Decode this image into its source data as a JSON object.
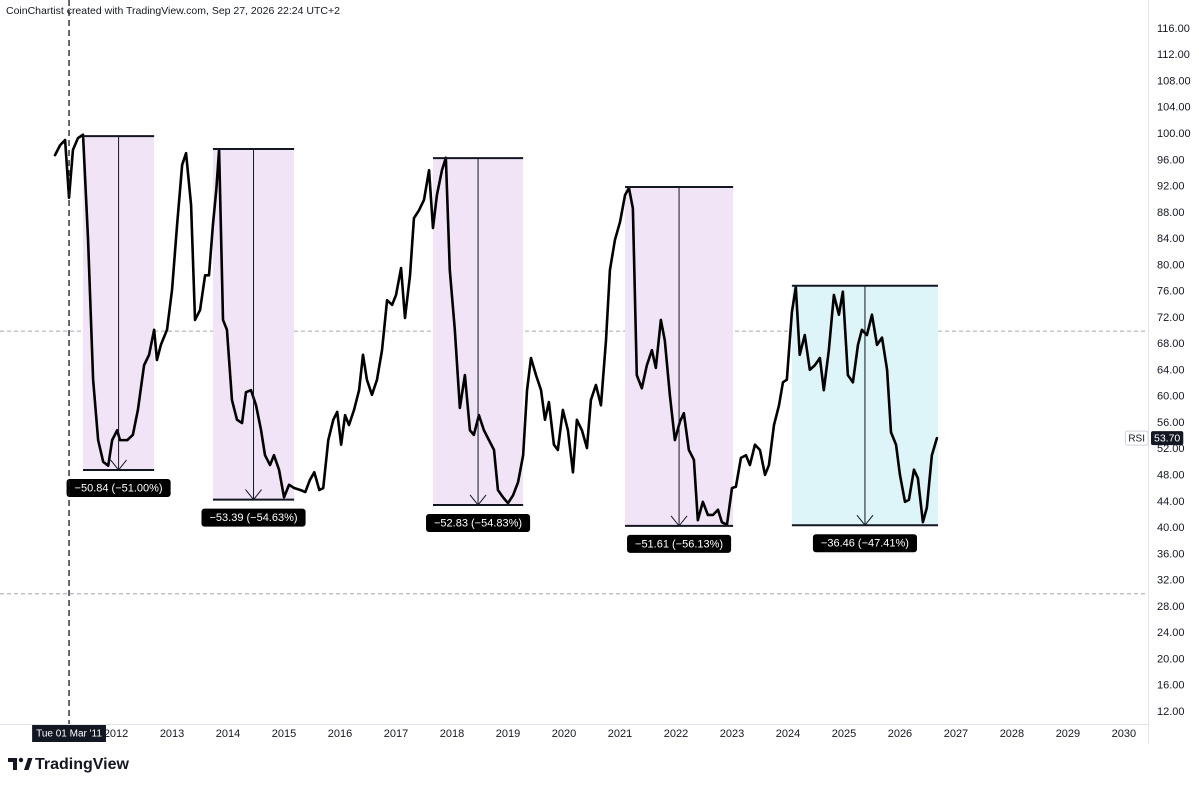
{
  "chart_data": {
    "type": "line",
    "title": "CoinChartist created with TradingView.com, Sep 27, 2026 22:24 UTC+2",
    "watermark": "TradingView",
    "xlim": [
      2010.07,
      2030.43
    ],
    "xticks": [
      2012,
      2013,
      2014,
      2015,
      2016,
      2017,
      2018,
      2019,
      2020,
      2021,
      2022,
      2023,
      2024,
      2025,
      2026,
      2027,
      2028,
      2029,
      2030
    ],
    "ylim": [
      10.17,
      117.68
    ],
    "yticks": [
      {
        "value": 12,
        "label": "12.00"
      },
      {
        "value": 16,
        "label": "16.00"
      },
      {
        "value": 20,
        "label": "20.00"
      },
      {
        "value": 24,
        "label": "24.00"
      },
      {
        "value": 28,
        "label": "28.00"
      },
      {
        "value": 32,
        "label": "32.00"
      },
      {
        "value": 36,
        "label": "36.00"
      },
      {
        "value": 40,
        "label": "40.00"
      },
      {
        "value": 44,
        "label": "44.00"
      },
      {
        "value": 48,
        "label": "48.00"
      },
      {
        "value": 52,
        "label": "52.00"
      },
      {
        "value": 56,
        "label": "56.00"
      },
      {
        "value": 60,
        "label": "60.00"
      },
      {
        "value": 64,
        "label": "64.00"
      },
      {
        "value": 68,
        "label": "68.00"
      },
      {
        "value": 72,
        "label": "72.00"
      },
      {
        "value": 76,
        "label": "76.00"
      },
      {
        "value": 80,
        "label": "80.00"
      },
      {
        "value": 84,
        "label": "84.00"
      },
      {
        "value": 88,
        "label": "88.00"
      },
      {
        "value": 92,
        "label": "92.00"
      },
      {
        "value": 96,
        "label": "96.00"
      },
      {
        "value": 100,
        "label": "100.00"
      },
      {
        "value": 104,
        "label": "104.00"
      },
      {
        "value": 108,
        "label": "108.00"
      },
      {
        "value": 112,
        "label": "112.00"
      },
      {
        "value": 116,
        "label": "116.00"
      }
    ],
    "grid": false,
    "levels": [
      70,
      30
    ],
    "crosshair": {
      "x": 2011.16,
      "label": "Tue 01 Mar '11"
    },
    "series": [
      {
        "name": "RSI",
        "color": "#000000",
        "last_label": "53.70",
        "x": [
          2010.91,
          2011.0,
          2011.09,
          2011.16,
          2011.23,
          2011.32,
          2011.41,
          2011.5,
          2011.59,
          2011.68,
          2011.77,
          2011.86,
          2011.93,
          2012.02,
          2012.07,
          2012.2,
          2012.3,
          2012.39,
          2012.5,
          2012.59,
          2012.68,
          2012.73,
          2012.8,
          2012.91,
          2013.0,
          2013.09,
          2013.18,
          2013.25,
          2013.34,
          2013.41,
          2013.5,
          2013.59,
          2013.66,
          2013.73,
          2013.79,
          2013.84,
          2013.91,
          2013.98,
          2014.07,
          2014.16,
          2014.25,
          2014.32,
          2014.41,
          2014.5,
          2014.59,
          2014.66,
          2014.75,
          2014.82,
          2014.91,
          2015.0,
          2015.09,
          2015.18,
          2015.29,
          2015.38,
          2015.46,
          2015.54,
          2015.63,
          2015.7,
          2015.79,
          2015.88,
          2015.95,
          2016.02,
          2016.09,
          2016.16,
          2016.25,
          2016.34,
          2016.41,
          2016.48,
          2016.57,
          2016.66,
          2016.75,
          2016.84,
          2016.93,
          2017.0,
          2017.09,
          2017.16,
          2017.25,
          2017.32,
          2017.41,
          2017.5,
          2017.59,
          2017.66,
          2017.73,
          2017.82,
          2017.89,
          2017.96,
          2018.05,
          2018.14,
          2018.23,
          2018.32,
          2018.39,
          2018.48,
          2018.57,
          2018.66,
          2018.75,
          2018.82,
          2018.91,
          2019.0,
          2019.09,
          2019.18,
          2019.27,
          2019.34,
          2019.41,
          2019.5,
          2019.59,
          2019.66,
          2019.73,
          2019.82,
          2019.89,
          2019.98,
          2020.07,
          2020.16,
          2020.23,
          2020.32,
          2020.41,
          2020.48,
          2020.57,
          2020.66,
          2020.75,
          2020.82,
          2020.91,
          2021.0,
          2021.09,
          2021.16,
          2021.23,
          2021.3,
          2021.39,
          2021.48,
          2021.57,
          2021.64,
          2021.73,
          2021.8,
          2021.89,
          2021.98,
          2022.07,
          2022.14,
          2022.23,
          2022.32,
          2022.39,
          2022.48,
          2022.57,
          2022.66,
          2022.75,
          2022.82,
          2022.91,
          2023.0,
          2023.07,
          2023.16,
          2023.25,
          2023.32,
          2023.41,
          2023.5,
          2023.59,
          2023.66,
          2023.75,
          2023.84,
          2023.91,
          2023.98,
          2024.07,
          2024.14,
          2024.21,
          2024.3,
          2024.39,
          2024.48,
          2024.57,
          2024.64,
          2024.73,
          2024.82,
          2024.91,
          2024.98,
          2025.07,
          2025.16,
          2025.25,
          2025.32,
          2025.41,
          2025.5,
          2025.59,
          2025.68,
          2025.77,
          2025.84,
          2025.93,
          2026.0,
          2026.09,
          2026.16,
          2026.25,
          2026.32,
          2026.41,
          2026.48,
          2026.57,
          2026.66
        ],
        "values": [
          96.8,
          98.3,
          99.1,
          90.3,
          97.6,
          99.4,
          99.9,
          83.9,
          62.6,
          53.4,
          50.1,
          49.5,
          53.4,
          54.9,
          53.4,
          53.4,
          54.2,
          58.0,
          64.8,
          66.4,
          70.2,
          65.6,
          67.9,
          70.2,
          76.3,
          86.2,
          95.3,
          97.1,
          89.2,
          71.7,
          73.2,
          78.5,
          78.5,
          86.2,
          91.5,
          97.6,
          71.7,
          70.2,
          59.5,
          56.5,
          56.0,
          60.7,
          61.0,
          58.7,
          54.9,
          51.1,
          49.6,
          51.1,
          48.9,
          44.7,
          46.6,
          46.1,
          45.8,
          45.5,
          47.3,
          48.5,
          45.8,
          46.1,
          53.4,
          56.5,
          57.7,
          52.7,
          57.2,
          55.7,
          58.0,
          61.0,
          66.4,
          62.6,
          60.3,
          62.6,
          67.1,
          74.7,
          74.0,
          75.5,
          79.6,
          72.0,
          78.5,
          87.2,
          88.4,
          90.0,
          94.5,
          85.7,
          90.7,
          94.5,
          96.4,
          79.3,
          70.2,
          58.3,
          63.3,
          54.9,
          54.2,
          57.2,
          54.9,
          53.4,
          51.9,
          45.8,
          44.7,
          43.8,
          45.0,
          47.0,
          51.1,
          61.0,
          65.9,
          63.3,
          61.0,
          56.5,
          59.2,
          52.7,
          51.9,
          58.0,
          54.9,
          48.5,
          56.5,
          54.9,
          52.2,
          59.5,
          61.8,
          58.7,
          68.6,
          79.3,
          83.9,
          86.6,
          90.7,
          91.8,
          88.7,
          63.3,
          61.3,
          64.8,
          67.1,
          64.4,
          71.7,
          68.6,
          60.3,
          53.4,
          56.2,
          57.5,
          51.9,
          50.4,
          41.2,
          44.0,
          42.0,
          42.0,
          42.8,
          40.9,
          40.5,
          46.1,
          46.3,
          50.7,
          51.1,
          49.6,
          52.7,
          51.9,
          48.1,
          49.6,
          55.7,
          58.7,
          62.2,
          62.6,
          72.9,
          76.7,
          66.4,
          69.4,
          64.1,
          64.8,
          65.9,
          61.0,
          67.1,
          75.5,
          72.5,
          76.0,
          63.3,
          62.2,
          67.9,
          70.2,
          69.4,
          72.5,
          67.9,
          69.0,
          64.1,
          54.6,
          52.7,
          48.1,
          44.0,
          44.3,
          48.9,
          47.6,
          40.9,
          43.1,
          51.1,
          53.7
        ]
      }
    ],
    "measurements": [
      {
        "x0": 2011.41,
        "x1": 2012.68,
        "top": 99.69,
        "bottom": 48.85,
        "label": "−50.84 (−51.00%)",
        "color": "#f2e4f7"
      },
      {
        "x0": 2013.73,
        "x1": 2015.18,
        "top": 97.73,
        "bottom": 44.34,
        "label": "−53.39 (−54.63%)",
        "color": "#f2e4f7"
      },
      {
        "x0": 2017.66,
        "x1": 2019.27,
        "top": 96.35,
        "bottom": 43.52,
        "label": "−52.83 (−54.83%)",
        "color": "#f2e4f7"
      },
      {
        "x0": 2021.09,
        "x1": 2023.02,
        "top": 91.95,
        "bottom": 40.34,
        "label": "−51.61 (−56.13%)",
        "color": "#f2e4f7"
      },
      {
        "x0": 2024.07,
        "x1": 2026.68,
        "top": 76.9,
        "bottom": 40.44,
        "label": "−36.46 (−47.41%)",
        "color": "#ddf4f9"
      }
    ]
  }
}
